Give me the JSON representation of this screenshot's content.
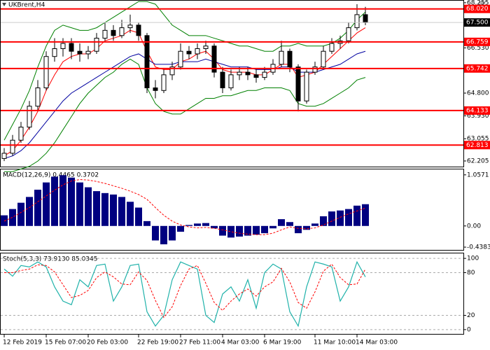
{
  "chart_data": [
    {
      "type": "candlestick",
      "title": "UKBrent,H4",
      "categories": [
        "12 Feb 2019",
        null,
        null,
        null,
        null,
        "15 Feb 07:00",
        null,
        null,
        null,
        null,
        "20 Feb 03:00",
        null,
        null,
        null,
        null,
        null,
        "22 Feb 19:00",
        null,
        null,
        null,
        null,
        "27 Feb 11:00",
        null,
        null,
        null,
        null,
        "4 Mar 03:00",
        null,
        null,
        null,
        null,
        "6 Mar 19:00",
        null,
        null,
        null,
        null,
        null,
        "11 Mar 10:00",
        null,
        null,
        null,
        null,
        "14 Mar 03:00",
        null
      ],
      "open": [
        62.3,
        62.5,
        63.0,
        63.5,
        64.3,
        65.0,
        66.2,
        66.5,
        66.7,
        66.4,
        66.3,
        66.4,
        66.9,
        67.2,
        67.0,
        67.3,
        67.4,
        67.0,
        65.0,
        64.9,
        65.5,
        65.8,
        66.4,
        66.3,
        66.5,
        66.6,
        65.6,
        65.0,
        65.5,
        65.6,
        65.5,
        65.4,
        65.6,
        65.9,
        66.4,
        65.8,
        64.5,
        65.6,
        65.8,
        66.4,
        66.7,
        66.8,
        67.3,
        67.8
      ],
      "high": [
        62.7,
        63.2,
        63.7,
        64.5,
        65.3,
        66.4,
        66.9,
        66.9,
        66.9,
        66.7,
        66.6,
        67.1,
        67.5,
        67.4,
        67.6,
        67.8,
        67.5,
        67.1,
        65.3,
        65.7,
        66.0,
        66.7,
        66.6,
        66.7,
        66.8,
        66.7,
        65.8,
        65.7,
        65.8,
        65.8,
        65.7,
        65.8,
        66.1,
        66.8,
        66.5,
        65.9,
        65.7,
        66.0,
        66.6,
        66.9,
        67.0,
        67.5,
        68.2,
        68.1
      ],
      "low": [
        62.2,
        62.4,
        62.9,
        63.4,
        64.1,
        64.9,
        66.0,
        66.2,
        66.1,
        66.0,
        66.1,
        66.3,
        66.8,
        66.8,
        66.9,
        67.1,
        66.8,
        64.8,
        64.6,
        64.8,
        65.3,
        65.7,
        66.1,
        66.1,
        66.3,
        65.4,
        64.8,
        64.9,
        65.3,
        65.3,
        65.2,
        65.3,
        65.5,
        65.8,
        65.6,
        64.1,
        64.4,
        65.5,
        65.7,
        66.3,
        66.5,
        66.7,
        67.2,
        67.4
      ],
      "close": [
        62.5,
        63.0,
        63.5,
        64.3,
        65.0,
        66.2,
        66.5,
        66.7,
        66.4,
        66.3,
        66.4,
        66.9,
        67.2,
        67.0,
        67.3,
        67.4,
        67.0,
        65.0,
        64.9,
        65.5,
        65.8,
        66.4,
        66.3,
        66.5,
        66.6,
        65.6,
        65.0,
        65.5,
        65.6,
        65.5,
        65.4,
        65.6,
        65.9,
        66.4,
        65.8,
        64.5,
        65.6,
        65.8,
        66.4,
        66.7,
        66.8,
        67.3,
        67.8,
        67.5
      ],
      "series": [
        {
          "color": "#ff0000",
          "values": [
            62.4,
            62.6,
            63.0,
            63.5,
            64.1,
            64.9,
            65.5,
            66.0,
            66.2,
            66.3,
            66.3,
            66.5,
            66.8,
            66.9,
            67.0,
            67.2,
            67.1,
            66.4,
            65.8,
            65.7,
            65.7,
            66.0,
            66.1,
            66.3,
            66.4,
            66.1,
            65.7,
            65.6,
            65.6,
            65.6,
            65.5,
            65.5,
            65.7,
            65.9,
            65.9,
            65.4,
            65.5,
            65.6,
            65.9,
            66.2,
            66.5,
            66.8,
            67.1,
            67.3
          ]
        },
        {
          "color": "#0000a0",
          "values": [
            62.3,
            62.4,
            62.6,
            62.9,
            63.3,
            63.7,
            64.1,
            64.5,
            64.8,
            65.0,
            65.2,
            65.4,
            65.6,
            65.8,
            66.0,
            66.2,
            66.3,
            66.1,
            65.9,
            65.9,
            65.9,
            66.0,
            66.0,
            66.0,
            66.1,
            66.0,
            65.9,
            65.8,
            65.8,
            65.8,
            65.7,
            65.7,
            65.7,
            65.8,
            65.8,
            65.6,
            65.6,
            65.6,
            65.7,
            65.8,
            65.9,
            66.1,
            66.3,
            66.4
          ]
        },
        {
          "color": "#008000",
          "values": [
            63.0,
            63.6,
            64.2,
            64.9,
            65.8,
            66.6,
            67.2,
            67.4,
            67.3,
            67.2,
            67.2,
            67.3,
            67.5,
            67.7,
            67.9,
            68.1,
            68.3,
            68.3,
            68.2,
            67.8,
            67.4,
            67.2,
            67.0,
            67.0,
            67.0,
            66.9,
            66.8,
            66.7,
            66.6,
            66.6,
            66.5,
            66.4,
            66.4,
            66.6,
            66.6,
            66.7,
            66.6,
            66.6,
            66.6,
            66.7,
            66.9,
            67.2,
            67.6,
            67.9
          ]
        },
        {
          "color": "#008000",
          "values": [
            61.8,
            61.8,
            61.9,
            62.0,
            62.2,
            62.5,
            62.9,
            63.4,
            63.9,
            64.4,
            64.8,
            65.1,
            65.4,
            65.6,
            65.9,
            66.1,
            65.9,
            65.0,
            64.4,
            64.1,
            64.0,
            64.0,
            64.2,
            64.4,
            64.6,
            64.6,
            64.7,
            64.7,
            64.8,
            64.9,
            64.9,
            65.0,
            65.0,
            65.0,
            64.9,
            64.4,
            64.3,
            64.3,
            64.4,
            64.6,
            64.8,
            65.0,
            65.3,
            65.4
          ]
        }
      ],
      "levels": [
        {
          "value": 68.02,
          "label": "68.020"
        },
        {
          "value": 66.759,
          "label": "66.759"
        },
        {
          "value": 65.742,
          "label": "65.742"
        },
        {
          "value": 64.133,
          "label": "64.133"
        },
        {
          "value": 62.813,
          "label": "62.813"
        }
      ],
      "level_color": "#ff0000",
      "last_price": {
        "value": 67.5,
        "label": "67.500"
      },
      "ylim": [
        61.99,
        68.36
      ],
      "yticks": [
        68.255,
        {
          "value": 66.53,
          "label": "66.530"
        },
        {
          "value": 64.8,
          "label": "64.800"
        },
        {
          "value": 63.93,
          "label": "63.930"
        },
        63.055,
        62.205
      ]
    },
    {
      "type": "macd",
      "title": "MACD(12,26,9) 0.4465 0.3702",
      "color": "#000080",
      "signal_color": "#ff0000",
      "values": [
        0.22,
        0.35,
        0.48,
        0.6,
        0.75,
        0.9,
        1.02,
        1.05,
        1.0,
        0.9,
        0.8,
        0.72,
        0.68,
        0.65,
        0.6,
        0.5,
        0.38,
        0.1,
        -0.3,
        -0.38,
        -0.3,
        -0.12,
        0.02,
        0.05,
        0.06,
        -0.05,
        -0.2,
        -0.24,
        -0.22,
        -0.2,
        -0.18,
        -0.15,
        -0.05,
        0.14,
        0.08,
        -0.15,
        -0.08,
        0.05,
        0.2,
        0.3,
        0.32,
        0.35,
        0.42,
        0.45
      ],
      "signal": [
        0.1,
        0.18,
        0.28,
        0.38,
        0.5,
        0.62,
        0.74,
        0.85,
        0.93,
        0.96,
        0.95,
        0.92,
        0.88,
        0.83,
        0.78,
        0.72,
        0.65,
        0.55,
        0.38,
        0.22,
        0.1,
        0.02,
        -0.02,
        -0.04,
        -0.03,
        -0.05,
        -0.08,
        -0.12,
        -0.15,
        -0.17,
        -0.18,
        -0.18,
        -0.15,
        -0.08,
        -0.02,
        -0.05,
        -0.06,
        -0.04,
        0.02,
        0.1,
        0.18,
        0.25,
        0.31,
        0.37
      ],
      "ylim": [
        -0.51,
        1.17
      ],
      "yticks": [
        1.0571,
        {
          "value": 0,
          "label": "0.00"
        },
        -0.4383
      ]
    },
    {
      "type": "stochastic",
      "title": "Stoch(5,3,3) 73.9130 85.0345",
      "color": "#20b2aa",
      "signal_color": "#ff0000",
      "values": [
        85,
        75,
        90,
        88,
        95,
        88,
        60,
        40,
        35,
        70,
        60,
        90,
        92,
        40,
        60,
        90,
        92,
        25,
        5,
        20,
        70,
        95,
        90,
        85,
        20,
        10,
        50,
        60,
        40,
        70,
        30,
        80,
        92,
        85,
        25,
        5,
        60,
        95,
        92,
        88,
        40,
        60,
        95,
        74
      ],
      "signal": [
        80,
        80,
        83,
        85,
        91,
        90,
        81,
        63,
        45,
        48,
        55,
        73,
        81,
        74,
        64,
        63,
        81,
        69,
        41,
        17,
        32,
        62,
        85,
        90,
        65,
        38,
        27,
        40,
        50,
        57,
        47,
        60,
        67,
        86,
        67,
        38,
        30,
        53,
        82,
        92,
        73,
        63,
        64,
        85
      ],
      "ylim": [
        -7,
        107
      ],
      "yticks": [
        100,
        80,
        20,
        0
      ]
    }
  ]
}
